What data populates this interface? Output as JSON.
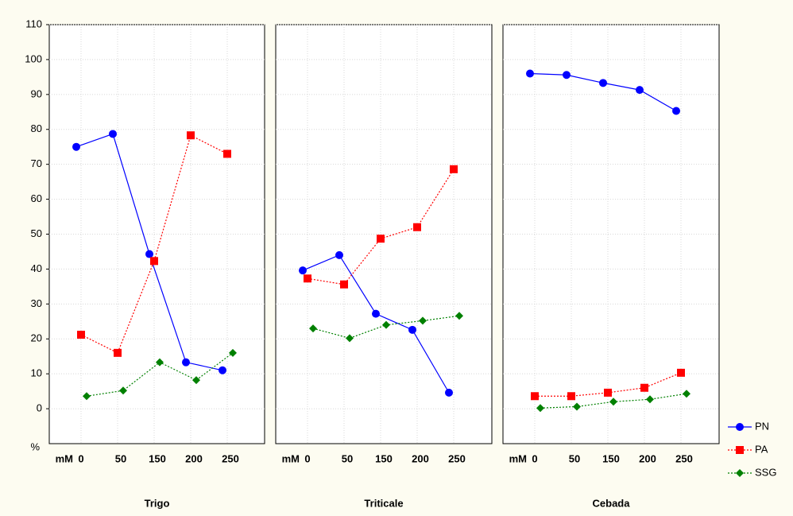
{
  "chart_data": {
    "type": "panels",
    "y_label": "%",
    "x_unit_label": "mM",
    "ylim": [
      -10,
      110
    ],
    "yticks": [
      0,
      10,
      20,
      30,
      40,
      50,
      60,
      70,
      80,
      90,
      100,
      110
    ],
    "grid": true,
    "legend_position": "bottom-right",
    "panels": [
      {
        "type": "line",
        "title": "Trigo",
        "categories": [
          "0",
          "50",
          "150",
          "200",
          "250"
        ],
        "series": [
          {
            "name": "PN",
            "color": "#0000ff",
            "marker": "circle",
            "line_style": "solid",
            "values": [
              75,
              78.7,
              44.3,
              13.3,
              11
            ]
          },
          {
            "name": "PA",
            "color": "#ff0000",
            "marker": "square",
            "line_style": "dotted",
            "values": [
              21.2,
              16,
              42.3,
              78.3,
              73
            ]
          },
          {
            "name": "SSG",
            "color": "#008000",
            "marker": "diamond",
            "line_style": "dotted",
            "values": [
              3.6,
              5.2,
              13.3,
              8.2,
              16
            ]
          }
        ]
      },
      {
        "type": "line",
        "title": "Triticale",
        "categories": [
          "0",
          "50",
          "150",
          "200",
          "250"
        ],
        "series": [
          {
            "name": "PN",
            "color": "#0000ff",
            "marker": "circle",
            "line_style": "solid",
            "values": [
              39.6,
              44,
              27.2,
              22.6,
              4.6
            ]
          },
          {
            "name": "PA",
            "color": "#ff0000",
            "marker": "square",
            "line_style": "dotted",
            "values": [
              37.3,
              35.6,
              48.7,
              52,
              68.6
            ]
          },
          {
            "name": "SSG",
            "color": "#008000",
            "marker": "diamond",
            "line_style": "dotted",
            "values": [
              23,
              20.2,
              24,
              25.2,
              26.6
            ]
          }
        ]
      },
      {
        "type": "line",
        "title": "Cebada",
        "categories": [
          "0",
          "50",
          "150",
          "200",
          "250"
        ],
        "series": [
          {
            "name": "PN",
            "color": "#0000ff",
            "marker": "circle",
            "line_style": "solid",
            "values": [
              96,
              95.6,
              93.3,
              91.3,
              85.3
            ]
          },
          {
            "name": "PA",
            "color": "#ff0000",
            "marker": "square",
            "line_style": "dotted",
            "values": [
              3.6,
              3.6,
              4.6,
              6,
              10.3
            ]
          },
          {
            "name": "SSG",
            "color": "#008000",
            "marker": "diamond",
            "line_style": "dotted",
            "values": [
              0.2,
              0.6,
              2,
              2.7,
              4.3
            ]
          }
        ]
      }
    ]
  }
}
